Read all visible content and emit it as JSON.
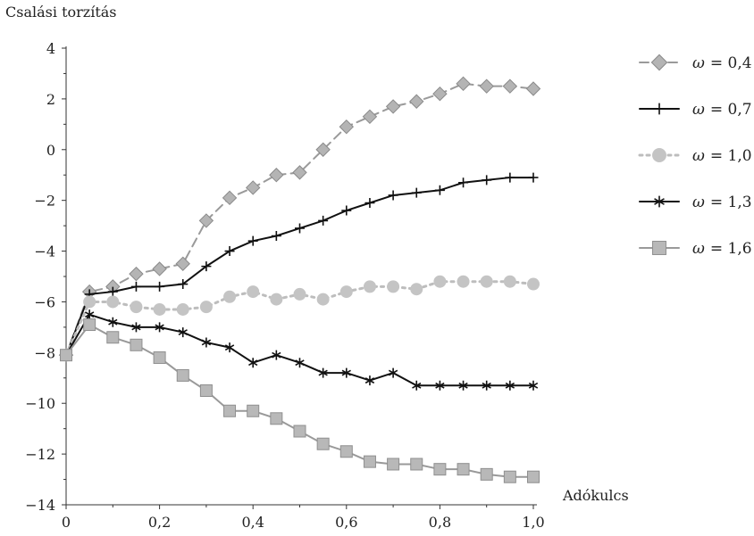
{
  "chart_data": {
    "type": "line",
    "title": "",
    "ylabel": "Csalási torzítás",
    "xlabel": "Adókulcs",
    "xlim": [
      0,
      1.0
    ],
    "ylim": [
      -14,
      4
    ],
    "xticks": [
      0,
      0.2,
      0.4,
      0.6,
      0.8,
      1.0
    ],
    "xtick_labels": [
      "0",
      "0,2",
      "0,4",
      "0,6",
      "0,8",
      "1,0"
    ],
    "yticks": [
      4,
      2,
      0,
      -2,
      -4,
      -6,
      -8,
      -10,
      -12,
      -14
    ],
    "ytick_labels": [
      "4",
      "2",
      "0",
      "−2",
      "−4",
      "−6",
      "−8",
      "−10",
      "−12",
      "−14"
    ],
    "grid": false,
    "legend_position": "right",
    "x": [
      0,
      0.05,
      0.1,
      0.15,
      0.2,
      0.25,
      0.3,
      0.35,
      0.4,
      0.45,
      0.5,
      0.55,
      0.6,
      0.65,
      0.7,
      0.75,
      0.8,
      0.85,
      0.9,
      0.95,
      1.0
    ],
    "series": [
      {
        "name": "ω = 0,4",
        "legend_symbol": "ω",
        "legend_value": "= 0,4",
        "color": "#9a9a9a",
        "marker": "diamond",
        "dash": "dashed",
        "values": [
          -8.1,
          -5.6,
          -5.4,
          -4.9,
          -4.7,
          -4.5,
          -2.8,
          -1.9,
          -1.5,
          -1.0,
          -0.9,
          0.0,
          0.9,
          1.3,
          1.7,
          1.9,
          2.2,
          2.6,
          2.5,
          2.5,
          2.4
        ]
      },
      {
        "name": "ω = 0,7",
        "legend_symbol": "ω",
        "legend_value": "= 0,7",
        "color": "#111111",
        "marker": "plus",
        "dash": "solid",
        "values": [
          -8.1,
          -5.7,
          -5.6,
          -5.4,
          -5.4,
          -5.3,
          -4.6,
          -4.0,
          -3.6,
          -3.4,
          -3.1,
          -2.8,
          -2.4,
          -2.1,
          -1.8,
          -1.7,
          -1.6,
          -1.3,
          -1.2,
          -1.1,
          -1.1
        ]
      },
      {
        "name": "ω = 1,0",
        "legend_symbol": "ω",
        "legend_value": "= 1,0",
        "color": "#bdbdbd",
        "marker": "circle",
        "dash": "dotted",
        "values": [
          -8.1,
          -6.0,
          -6.0,
          -6.2,
          -6.3,
          -6.3,
          -6.2,
          -5.8,
          -5.6,
          -5.9,
          -5.7,
          -5.9,
          -5.6,
          -5.4,
          -5.4,
          -5.5,
          -5.2,
          -5.2,
          -5.2,
          -5.2,
          -5.3
        ]
      },
      {
        "name": "ω = 1,3",
        "legend_symbol": "ω",
        "legend_value": "= 1,3",
        "color": "#111111",
        "marker": "star",
        "dash": "solid",
        "values": [
          -8.1,
          -6.5,
          -6.8,
          -7.0,
          -7.0,
          -7.2,
          -7.6,
          -7.8,
          -8.4,
          -8.1,
          -8.4,
          -8.8,
          -8.8,
          -9.1,
          -8.8,
          -9.3,
          -9.3,
          -9.3,
          -9.3,
          -9.3,
          -9.3
        ]
      },
      {
        "name": "ω = 1,6",
        "legend_symbol": "ω",
        "legend_value": "= 1,6",
        "color": "#999999",
        "marker": "square",
        "dash": "solid",
        "values": [
          -8.1,
          -6.9,
          -7.4,
          -7.7,
          -8.2,
          -8.9,
          -9.5,
          -10.3,
          -10.3,
          -10.6,
          -11.1,
          -11.6,
          -11.9,
          -12.3,
          -12.4,
          -12.4,
          -12.6,
          -12.6,
          -12.8,
          -12.9,
          -12.9
        ]
      }
    ]
  }
}
